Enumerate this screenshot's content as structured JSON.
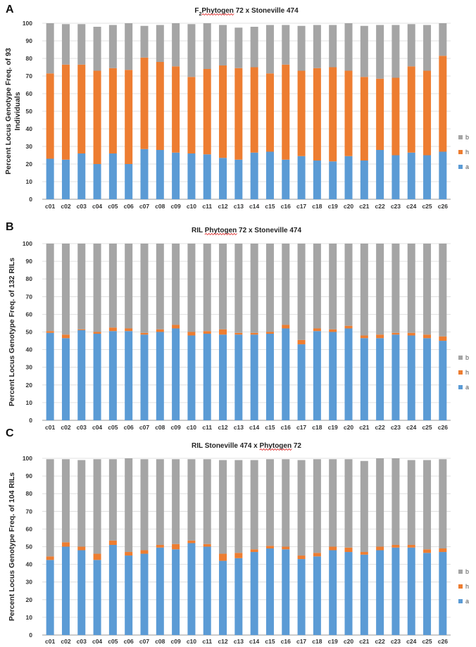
{
  "colors": {
    "a": "#5b9bd5",
    "h": "#ed7d31",
    "b": "#a5a5a5",
    "grid": "#d9d9d9",
    "axis": "#9a9a9a"
  },
  "chart_data": [
    {
      "panel": "A",
      "type": "bar",
      "stacked": true,
      "title_prefix": "F",
      "title_sub": "2",
      "title_squiggle": "Phytogen",
      "title_rest": " 72 x Stoneville 474",
      "ylabel_line1": "Percent Locus Genotype Freq. of 93",
      "ylabel_line2": "Individuals",
      "ylim": [
        0,
        100
      ],
      "yticks": [
        "0",
        "10",
        "20",
        "30",
        "40",
        "50",
        "60",
        "70",
        "80",
        "90",
        "100"
      ],
      "categories": [
        "c01",
        "c02",
        "c03",
        "c04",
        "c05",
        "c06",
        "c07",
        "c08",
        "c09",
        "c10",
        "c11",
        "c12",
        "c13",
        "c14",
        "c15",
        "c16",
        "c17",
        "c18",
        "c19",
        "c20",
        "c21",
        "c22",
        "c23",
        "c24",
        "c25",
        "c26"
      ],
      "legend": [
        "b",
        "h",
        "a"
      ],
      "series": [
        {
          "name": "a",
          "values": [
            23,
            22.5,
            26,
            20,
            26,
            20,
            28.5,
            28,
            26.5,
            26,
            25.5,
            23.5,
            22.5,
            26.5,
            27,
            22.5,
            24.5,
            22,
            21.5,
            24.5,
            22,
            28,
            25,
            26.5,
            25,
            27
          ]
        },
        {
          "name": "h",
          "values": [
            48.5,
            54,
            50.5,
            53,
            48.5,
            53.5,
            52,
            50,
            49,
            43.5,
            48.5,
            52.5,
            52,
            48.5,
            44.5,
            54,
            48.5,
            52.5,
            53.5,
            48.5,
            47.5,
            40.5,
            44,
            49,
            48,
            54.5
          ]
        },
        {
          "name": "b",
          "values": [
            28.5,
            23,
            23,
            25,
            24.5,
            26.5,
            18,
            21,
            24.5,
            30,
            26,
            23,
            23,
            23,
            27.5,
            22.5,
            25.5,
            24.5,
            24,
            27,
            29,
            30.5,
            30,
            24,
            26,
            18.5
          ]
        }
      ]
    },
    {
      "panel": "B",
      "type": "bar",
      "stacked": true,
      "title_prefix": "RIL ",
      "title_sub": "",
      "title_squiggle": "Phytogen",
      "title_rest": " 72 x Stoneville 474",
      "ylabel_line1": "Percent Locus Genotype Freq. of 132 RILs",
      "ylabel_line2": "",
      "ylim": [
        0,
        100
      ],
      "yticks": [
        "0",
        "10",
        "20",
        "30",
        "40",
        "50",
        "60",
        "70",
        "80",
        "90",
        "100"
      ],
      "categories": [
        "c01",
        "c02",
        "c03",
        "c04",
        "c05",
        "c06",
        "c07",
        "c08",
        "c09",
        "c10",
        "c11",
        "c12",
        "c13",
        "c14",
        "c15",
        "c16",
        "c17",
        "c18",
        "c19",
        "c20",
        "c21",
        "c22",
        "c23",
        "c24",
        "c25",
        "c26"
      ],
      "legend": [
        "b",
        "h",
        "a"
      ],
      "series": [
        {
          "name": "a",
          "values": [
            49.5,
            46.5,
            51,
            49,
            50.5,
            50.5,
            48.5,
            50,
            52,
            48,
            49,
            48.5,
            48.5,
            48.5,
            49,
            52,
            43,
            50.5,
            50,
            52,
            46.5,
            46.5,
            48.5,
            48,
            46.5,
            45
          ]
        },
        {
          "name": "h",
          "values": [
            1,
            2,
            0.5,
            1,
            2,
            1.5,
            1,
            1.5,
            2,
            2,
            1.5,
            3,
            1,
            1,
            1,
            2,
            2.5,
            1.5,
            1.5,
            1.5,
            1.5,
            2,
            1,
            1.5,
            2,
            2.5
          ]
        },
        {
          "name": "b",
          "values": [
            49.5,
            51.5,
            48.5,
            50,
            47.5,
            48,
            50.5,
            48.5,
            46,
            50,
            49.5,
            48.5,
            50.5,
            50.5,
            50,
            46,
            54.5,
            48,
            48.5,
            46.5,
            52,
            51.5,
            50.5,
            50.5,
            51.5,
            52.5
          ]
        }
      ]
    },
    {
      "panel": "C",
      "type": "bar",
      "stacked": true,
      "title_prefix": "RIL Stoneville 474 x ",
      "title_sub": "",
      "title_squiggle": "Phytogen",
      "title_rest": " 72",
      "ylabel_line1": "Percent Locus Genotype Freq. of 104 RILs",
      "ylabel_line2": "",
      "ylim": [
        0,
        100
      ],
      "yticks": [
        "0",
        "10",
        "20",
        "30",
        "40",
        "50",
        "60",
        "70",
        "80",
        "90",
        "100"
      ],
      "categories": [
        "c01",
        "c02",
        "c03",
        "c04",
        "c05",
        "c06",
        "c07",
        "c08",
        "c09",
        "c10",
        "c11",
        "c12",
        "c13",
        "c14",
        "c15",
        "c16",
        "c17",
        "c18",
        "c19",
        "c20",
        "c21",
        "c22",
        "c23",
        "c24",
        "c25",
        "c26"
      ],
      "legend": [
        "b",
        "h",
        "a"
      ],
      "series": [
        {
          "name": "a",
          "values": [
            42.5,
            50,
            48,
            42.5,
            51,
            45,
            46,
            49.5,
            48.5,
            52,
            50,
            42,
            43.5,
            47,
            49,
            48.5,
            43,
            44.5,
            48,
            47,
            45.5,
            48,
            49.5,
            49.5,
            46.5,
            47
          ]
        },
        {
          "name": "h",
          "values": [
            2,
            2.5,
            2,
            3.5,
            2.5,
            2,
            2,
            1.5,
            3,
            1.5,
            1.5,
            4,
            3,
            1.5,
            1.5,
            1.5,
            2,
            2,
            2,
            2.5,
            1.5,
            2,
            1.5,
            1.5,
            2,
            2
          ]
        },
        {
          "name": "b",
          "values": [
            55,
            47,
            49,
            53.5,
            46,
            53,
            51.5,
            48.5,
            48,
            46,
            48,
            53,
            52.5,
            50.5,
            49,
            49.5,
            54,
            53,
            49.5,
            50,
            51.5,
            50,
            49,
            48,
            50.5,
            50.5
          ]
        }
      ]
    }
  ]
}
